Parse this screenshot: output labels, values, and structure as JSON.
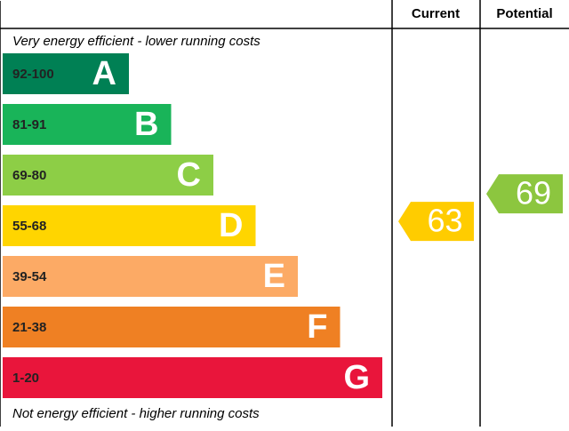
{
  "chart_data": {
    "type": "epc",
    "headers": [
      "Current",
      "Potential"
    ],
    "top_note": "Very energy efficient - lower running costs",
    "bottom_note": "Not energy efficient - higher running costs",
    "bands": [
      {
        "range": "92-100",
        "letter": "A",
        "color": "#008054"
      },
      {
        "range": "81-91",
        "letter": "B",
        "color": "#19b459"
      },
      {
        "range": "69-80",
        "letter": "C",
        "color": "#8dce46"
      },
      {
        "range": "55-68",
        "letter": "D",
        "color": "#ffd500"
      },
      {
        "range": "39-54",
        "letter": "E",
        "color": "#fcaa65"
      },
      {
        "range": "21-38",
        "letter": "F",
        "color": "#ef8023"
      },
      {
        "range": "1-20",
        "letter": "G",
        "color": "#e9153b"
      }
    ],
    "current": {
      "value": 63,
      "color": "#ffcc00"
    },
    "potential": {
      "value": 69,
      "color": "#8cc63f"
    }
  }
}
